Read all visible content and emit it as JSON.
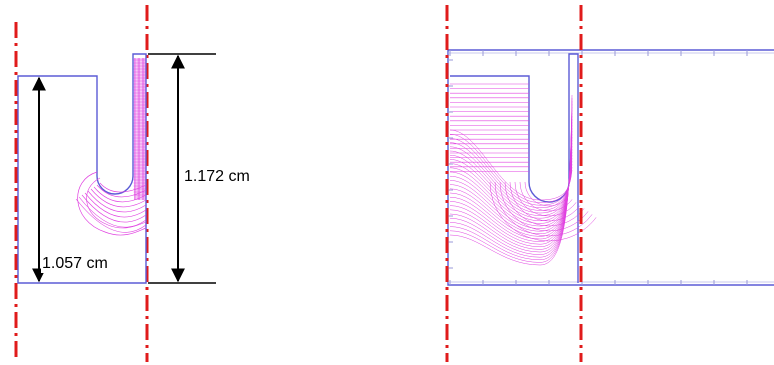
{
  "colors": {
    "outline": "#5b5bd6",
    "field_lines": "#e040e0",
    "symmetry": "#e01b1b",
    "dimension": "#000000",
    "grid_tick": "#9a9ad8"
  },
  "left_panel": {
    "dim_outer_label": "1.172 cm",
    "dim_inner_label": "1.057 cm"
  }
}
